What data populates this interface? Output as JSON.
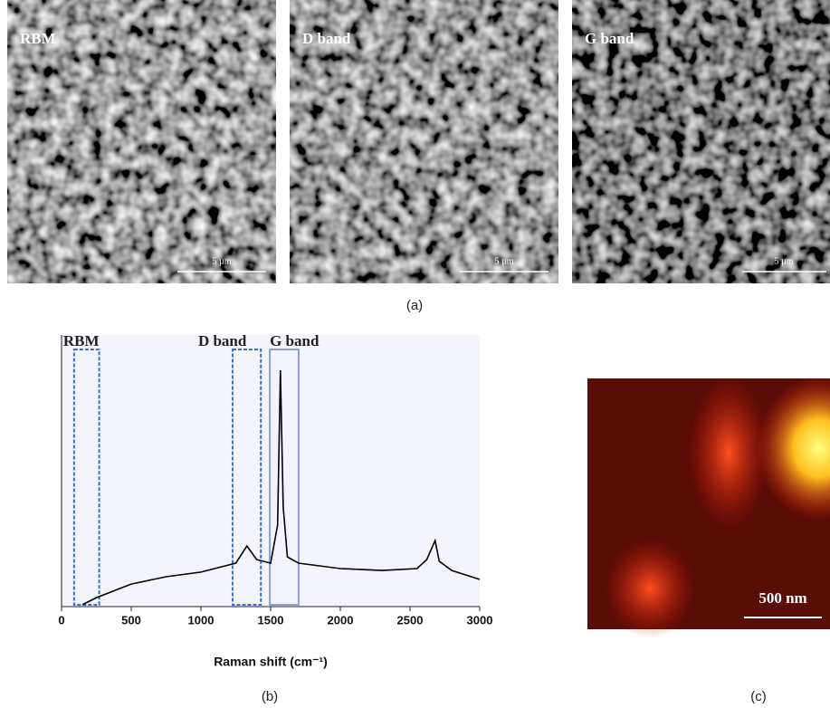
{
  "panel_a": {
    "images": [
      {
        "label": "RBM",
        "scale_bar": "5 µm"
      },
      {
        "label": "D band",
        "scale_bar": "5 µm"
      },
      {
        "label": "G band",
        "scale_bar": "5 µm"
      }
    ],
    "caption": "(a)"
  },
  "chart_data": {
    "type": "line",
    "xlabel": "Raman shift (cm⁻¹)",
    "x": [
      150,
      250,
      500,
      750,
      1000,
      1250,
      1330,
      1400,
      1500,
      1550,
      1570,
      1590,
      1620,
      1700,
      2000,
      2300,
      2550,
      2620,
      2680,
      2710,
      2800,
      3000
    ],
    "values": [
      0.7,
      3.3,
      8.3,
      11,
      12.7,
      16,
      22.3,
      17.3,
      16,
      30,
      87,
      36.7,
      18.3,
      16,
      14,
      13.3,
      14,
      17.3,
      24.3,
      16.7,
      13.3,
      10
    ],
    "color": "#000000",
    "xlim": [
      0,
      3000
    ],
    "xticks": [
      0,
      500,
      1000,
      1500,
      2000,
      2500,
      3000
    ],
    "ylim": [
      0,
      100
    ],
    "regions": [
      {
        "name": "RBM",
        "range": [
          90,
          270
        ],
        "color": "#3a6fd0",
        "style": "dashed"
      },
      {
        "name": "D band",
        "range": [
          1227,
          1430
        ],
        "color": "#3a6fd0",
        "style": "dashed"
      },
      {
        "name": "G band",
        "range": [
          1494,
          1701
        ],
        "color": "#8aa0d8",
        "style": "solid"
      }
    ],
    "caption": "(b)"
  },
  "panel_c": {
    "scale_bar": "500 nm",
    "caption": "(c)"
  }
}
